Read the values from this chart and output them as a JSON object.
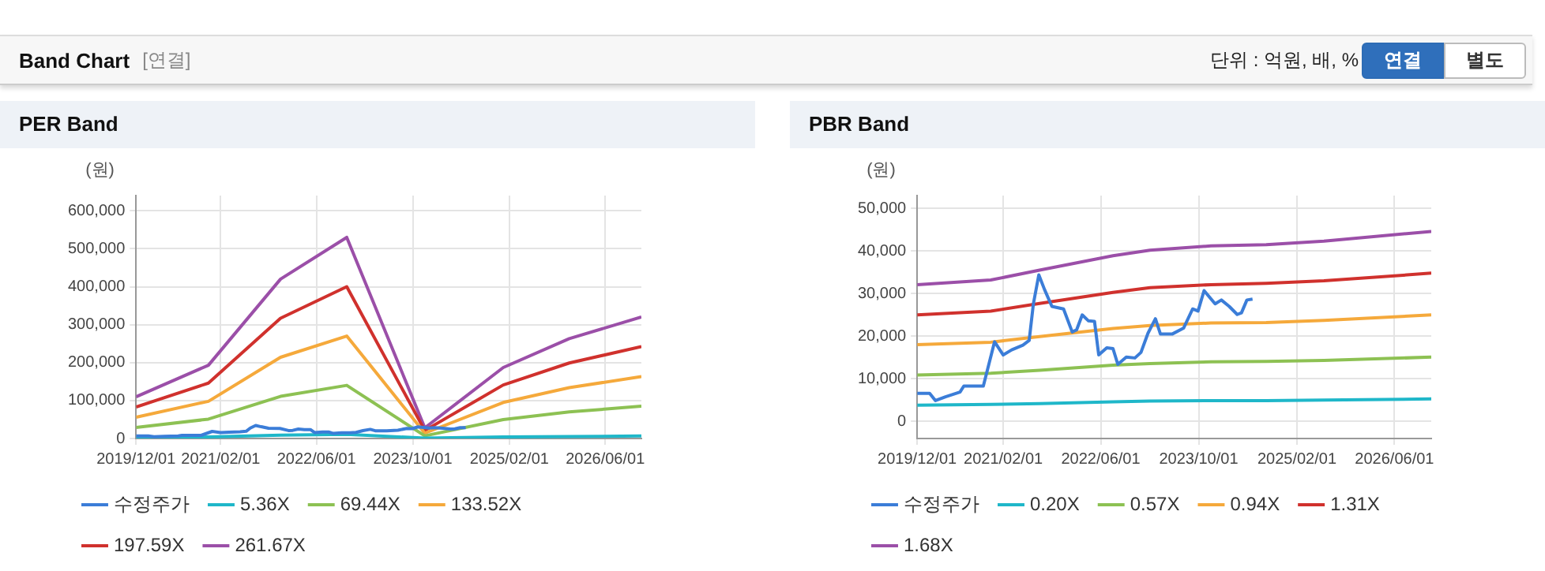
{
  "chart_data": [
    {
      "type": "other",
      "title": "Band Chart",
      "subtitle": "[연결]",
      "annotations": [
        "단위 : 억원, 배, %",
        "연결",
        "별도"
      ]
    },
    {
      "type": "line",
      "title": "PER Band",
      "ylabel": "(원)",
      "xlim": [
        "2019-12-01",
        "2026-12-01"
      ],
      "xticks": [
        {
          "value": "2019-12-01",
          "label": "2019/12/01"
        },
        {
          "value": "2021-02-01",
          "label": "2021/02/01"
        },
        {
          "value": "2022-06-01",
          "label": "2022/06/01"
        },
        {
          "value": "2023-10-01",
          "label": "2023/10/01"
        },
        {
          "value": "2025-02-01",
          "label": "2025/02/01"
        },
        {
          "value": "2026-06-01",
          "label": "2026/06/01"
        }
      ],
      "ylim": [
        0,
        640000
      ],
      "yticks": [
        {
          "value": 0,
          "label": "0"
        },
        {
          "value": 100000,
          "label": "100,000"
        },
        {
          "value": 200000,
          "label": "200,000"
        },
        {
          "value": 300000,
          "label": "300,000"
        },
        {
          "value": 400000,
          "label": "400,000"
        },
        {
          "value": 500000,
          "label": "500,000"
        },
        {
          "value": 600000,
          "label": "600,000"
        }
      ],
      "grid": true,
      "legend": "bottom",
      "marker": "none",
      "line_style": "solid",
      "series": [
        {
          "name": "수정주가",
          "color": "#3b7dd8",
          "x": [
            "2019-12-01",
            "2020-02-01",
            "2020-03-01",
            "2020-04-20",
            "2020-07-01",
            "2020-07-20",
            "2020-10-25",
            "2020-12-20",
            "2021-02-01",
            "2021-03-15",
            "2021-05-10",
            "2021-06-10",
            "2021-07-01",
            "2021-07-28",
            "2021-08-25",
            "2021-10-01",
            "2021-11-28",
            "2022-01-10",
            "2022-02-01",
            "2022-03-01",
            "2022-04-01",
            "2022-05-01",
            "2022-05-22",
            "2022-07-01",
            "2022-08-01",
            "2022-08-25",
            "2022-10-06",
            "2022-11-18",
            "2022-12-18",
            "2023-01-22",
            "2023-02-28",
            "2023-03-25",
            "2023-05-22",
            "2023-07-18",
            "2023-09-01",
            "2023-09-28",
            "2023-10-28",
            "2023-12-22",
            "2024-01-22",
            "2024-03-01",
            "2024-04-10",
            "2024-05-01",
            "2024-05-28",
            "2024-06-25"
          ],
          "values": [
            6600,
            6600,
            4900,
            5800,
            6900,
            8300,
            8300,
            18700,
            15600,
            16800,
            17900,
            19000,
            27600,
            34400,
            31000,
            27000,
            26400,
            21000,
            21500,
            25000,
            23600,
            23500,
            15600,
            17300,
            17100,
            13400,
            15100,
            14900,
            16200,
            20700,
            24100,
            20500,
            20500,
            21900,
            26400,
            25900,
            30700,
            27600,
            28500,
            27000,
            25100,
            25500,
            28500,
            28700
          ]
        },
        {
          "name": "5.36X",
          "color": "#1fb7c9",
          "x": [
            "2019-12-01",
            "2020-12-01",
            "2021-12-01",
            "2022-11-01",
            "2023-12-01",
            "2025-01-01",
            "2025-12-01",
            "2026-12-01"
          ],
          "values": [
            2000,
            4000,
            9000,
            11000,
            1000,
            4000,
            5000,
            7000
          ]
        },
        {
          "name": "69.44X",
          "color": "#8dc153",
          "x": [
            "2019-12-01",
            "2020-12-01",
            "2021-12-01",
            "2022-11-01",
            "2023-12-01",
            "2025-01-01",
            "2025-12-01",
            "2026-12-01"
          ],
          "values": [
            29000,
            51000,
            111000,
            140000,
            7000,
            50000,
            70000,
            85000
          ]
        },
        {
          "name": "133.52X",
          "color": "#f5a93b",
          "x": [
            "2019-12-01",
            "2020-12-01",
            "2021-12-01",
            "2022-11-01",
            "2023-12-01",
            "2025-01-01",
            "2025-12-01",
            "2026-12-01"
          ],
          "values": [
            56000,
            98000,
            214000,
            270000,
            14000,
            95000,
            134000,
            163000
          ]
        },
        {
          "name": "197.59X",
          "color": "#d0312d",
          "x": [
            "2019-12-01",
            "2020-12-01",
            "2021-12-01",
            "2022-11-01",
            "2023-12-01",
            "2025-01-01",
            "2025-12-01",
            "2026-12-01"
          ],
          "values": [
            83000,
            146000,
            317000,
            400000,
            21000,
            141000,
            199000,
            242000
          ]
        },
        {
          "name": "261.67X",
          "color": "#9b4fa8",
          "x": [
            "2019-12-01",
            "2020-12-01",
            "2021-12-01",
            "2022-11-01",
            "2023-12-01",
            "2025-01-01",
            "2025-12-01",
            "2026-12-01"
          ],
          "values": [
            110000,
            193000,
            420000,
            530000,
            28000,
            187000,
            263000,
            320000
          ]
        }
      ]
    },
    {
      "type": "line",
      "title": "PBR Band",
      "ylabel": "(원)",
      "xlim": [
        "2019-12-01",
        "2026-12-01"
      ],
      "xticks": [
        {
          "value": "2019-12-01",
          "label": "2019/12/01"
        },
        {
          "value": "2021-02-01",
          "label": "2021/02/01"
        },
        {
          "value": "2022-06-01",
          "label": "2022/06/01"
        },
        {
          "value": "2023-10-01",
          "label": "2023/10/01"
        },
        {
          "value": "2025-02-01",
          "label": "2025/02/01"
        },
        {
          "value": "2026-06-01",
          "label": "2026/06/01"
        }
      ],
      "ylim": [
        -4000,
        53000
      ],
      "yticks": [
        {
          "value": 0,
          "label": "0"
        },
        {
          "value": 10000,
          "label": "10,000"
        },
        {
          "value": 20000,
          "label": "20,000"
        },
        {
          "value": 30000,
          "label": "30,000"
        },
        {
          "value": 40000,
          "label": "40,000"
        },
        {
          "value": 50000,
          "label": "50,000"
        }
      ],
      "grid": true,
      "legend": "bottom",
      "marker": "none",
      "line_style": "solid",
      "series": [
        {
          "name": "수정주가",
          "color": "#3b7dd8",
          "x": [
            "2019-12-01",
            "2020-02-01",
            "2020-03-01",
            "2020-04-20",
            "2020-07-01",
            "2020-07-20",
            "2020-10-25",
            "2020-12-20",
            "2021-02-01",
            "2021-03-15",
            "2021-05-10",
            "2021-06-10",
            "2021-07-01",
            "2021-07-28",
            "2021-08-25",
            "2021-10-01",
            "2021-11-28",
            "2022-01-10",
            "2022-02-01",
            "2022-03-01",
            "2022-04-01",
            "2022-05-01",
            "2022-05-22",
            "2022-07-01",
            "2022-08-01",
            "2022-08-25",
            "2022-10-06",
            "2022-11-18",
            "2022-12-18",
            "2023-01-22",
            "2023-02-28",
            "2023-03-25",
            "2023-05-22",
            "2023-07-18",
            "2023-09-01",
            "2023-09-28",
            "2023-10-28",
            "2023-12-22",
            "2024-01-22",
            "2024-03-01",
            "2024-04-10",
            "2024-05-01",
            "2024-05-28",
            "2024-06-25"
          ],
          "values": [
            6600,
            6600,
            4900,
            5800,
            6900,
            8300,
            8300,
            18700,
            15600,
            16800,
            17900,
            19000,
            27600,
            34400,
            31000,
            27000,
            26400,
            21000,
            21500,
            25000,
            23600,
            23500,
            15600,
            17300,
            17100,
            13400,
            15100,
            14900,
            16200,
            20700,
            24100,
            20500,
            20500,
            21900,
            26400,
            25900,
            30700,
            27600,
            28500,
            27000,
            25100,
            25500,
            28500,
            28700
          ]
        },
        {
          "name": "0.20X",
          "color": "#1fb7c9",
          "x": [
            "2019-12-01",
            "2020-12-01",
            "2021-08-01",
            "2022-08-01",
            "2023-02-01",
            "2023-12-01",
            "2024-09-01",
            "2025-06-15",
            "2026-12-01"
          ],
          "values": [
            3800,
            4000,
            4200,
            4600,
            4800,
            4900,
            4900,
            5000,
            5300
          ]
        },
        {
          "name": "0.57X",
          "color": "#8dc153",
          "x": [
            "2019-12-01",
            "2020-12-01",
            "2021-08-01",
            "2022-08-01",
            "2023-02-01",
            "2023-12-01",
            "2024-09-01",
            "2025-06-15",
            "2026-12-01"
          ],
          "values": [
            10900,
            11300,
            12000,
            13200,
            13600,
            14000,
            14100,
            14300,
            15100
          ]
        },
        {
          "name": "0.94X",
          "color": "#f5a93b",
          "x": [
            "2019-12-01",
            "2020-12-01",
            "2021-08-01",
            "2022-08-01",
            "2023-02-01",
            "2023-12-01",
            "2024-09-01",
            "2025-06-15",
            "2026-12-01"
          ],
          "values": [
            18000,
            18600,
            19900,
            21800,
            22500,
            23100,
            23200,
            23700,
            25000
          ]
        },
        {
          "name": "1.31X",
          "color": "#d0312d",
          "x": [
            "2019-12-01",
            "2020-12-01",
            "2021-08-01",
            "2022-08-01",
            "2023-02-01",
            "2023-12-01",
            "2024-09-01",
            "2025-06-15",
            "2026-12-01"
          ],
          "values": [
            25000,
            25900,
            27700,
            30300,
            31400,
            32100,
            32400,
            33000,
            34800
          ]
        },
        {
          "name": "1.68X",
          "color": "#9b4fa8",
          "x": [
            "2019-12-01",
            "2020-12-01",
            "2021-08-01",
            "2022-08-01",
            "2023-02-01",
            "2023-12-01",
            "2024-09-01",
            "2025-06-15",
            "2026-12-01"
          ],
          "values": [
            32100,
            33200,
            35500,
            38900,
            40200,
            41200,
            41500,
            42300,
            44600
          ]
        }
      ]
    }
  ]
}
